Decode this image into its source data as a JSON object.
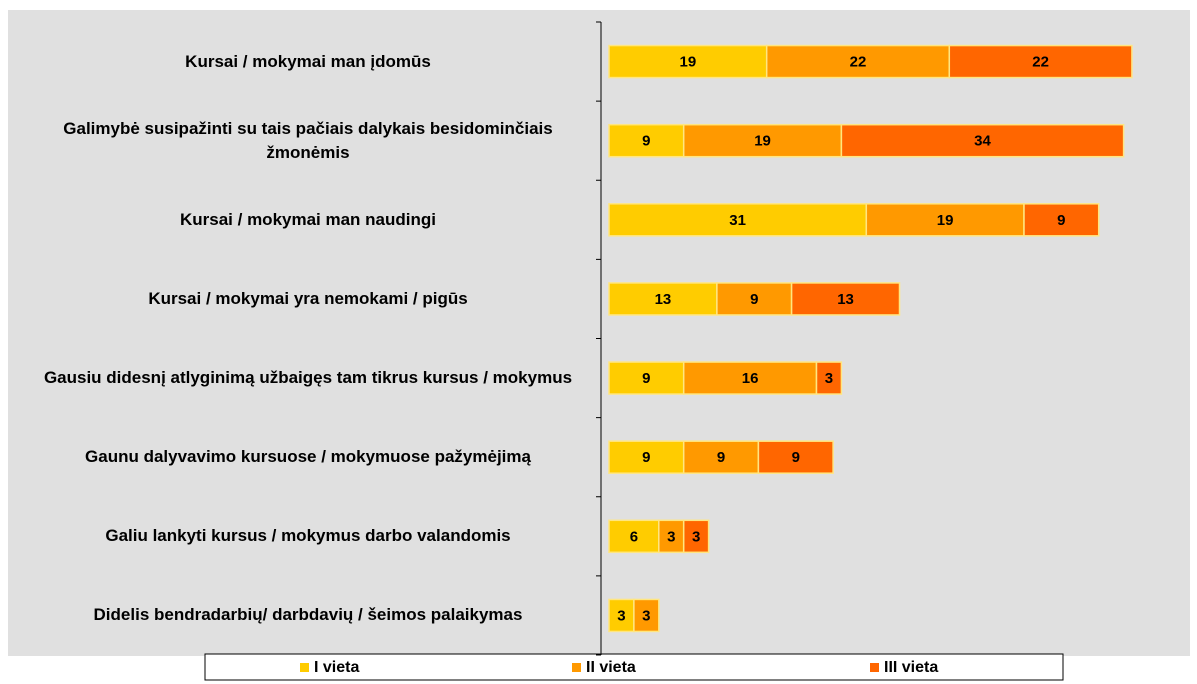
{
  "chart_data": {
    "type": "stacked-bar-horizontal",
    "categories": [
      "Kursai / mokymai man įdomūs",
      "Galimybė susipažinti su tais pačiais dalykais besidominčiais žmonėmis",
      "Kursai / mokymai man naudingi",
      "Kursai / mokymai yra nemokami / pigūs",
      "Gausiu didesnį atlyginimą užbaigęs tam tikrus kursus / mokymus",
      "Gaunu dalyvavimo kursuose / mokymuose pažymėjimą",
      "Galiu lankyti kursus / mokymus darbo valandomis",
      "Didelis bendradarbių/ darbdavių / šeimos palaikymas"
    ],
    "series": [
      {
        "name": "I vieta",
        "color": "#ffcc00",
        "values": [
          19,
          9,
          31,
          13,
          9,
          9,
          6,
          3
        ]
      },
      {
        "name": "II vieta",
        "color": "#ff9900",
        "values": [
          22,
          19,
          19,
          9,
          16,
          9,
          3,
          3
        ]
      },
      {
        "name": "III vieta",
        "color": "#ff6600",
        "values": [
          22,
          34,
          9,
          13,
          3,
          9,
          3,
          null
        ]
      }
    ],
    "xlim": [
      0,
      70
    ],
    "legend": "bottom"
  }
}
